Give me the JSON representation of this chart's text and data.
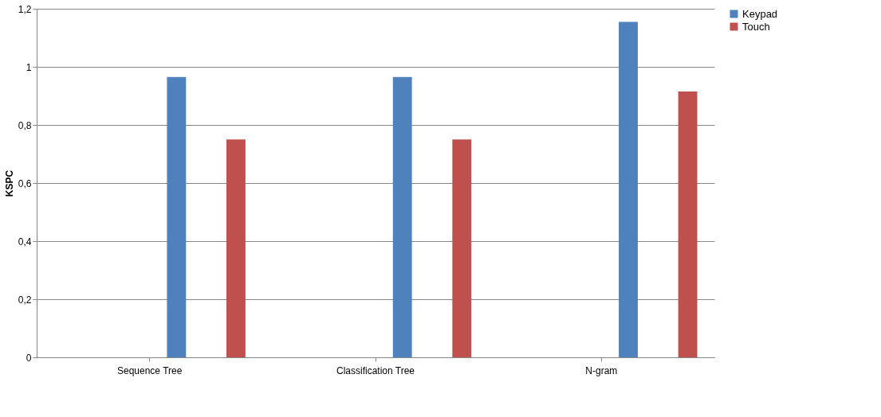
{
  "chart_data": {
    "type": "bar",
    "ylabel": "KSPC",
    "categories": [
      "Sequence Tree",
      "Classification Tree",
      "N-gram"
    ],
    "series": [
      {
        "name": "Keypad",
        "color": "#4f81bd",
        "values": [
          0.965,
          0.965,
          1.155
        ]
      },
      {
        "name": "Touch",
        "color": "#c0504d",
        "values": [
          0.75,
          0.75,
          0.915
        ]
      }
    ],
    "ylim": [
      0,
      1.2
    ],
    "yticks": [
      0,
      {
        "value": 0.2,
        "label": "0,2"
      },
      {
        "value": 0.4,
        "label": "0,4"
      },
      {
        "value": 0.6,
        "label": "0,6"
      },
      {
        "value": 0.8,
        "label": "0,8"
      },
      1,
      {
        "value": 1.2,
        "label": "1,2"
      }
    ],
    "grid": "y",
    "legend": "right"
  }
}
